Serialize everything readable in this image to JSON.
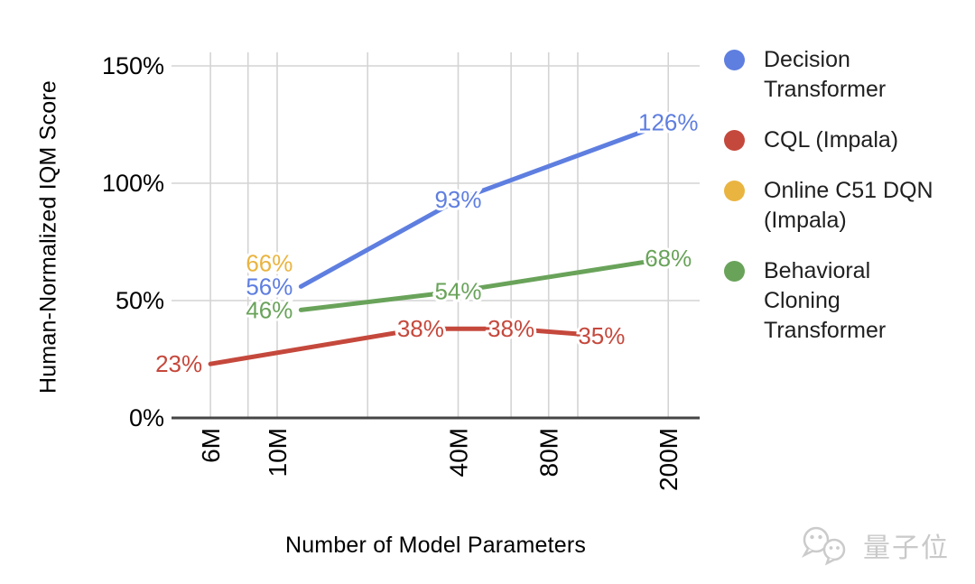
{
  "chart_data": {
    "type": "line",
    "title": "",
    "xlabel": "Number of Model Parameters",
    "ylabel": "Human-Normalized IQM Score",
    "x_axis": {
      "scale": "log",
      "tick_labels": [
        "6M",
        "10M",
        "40M",
        "80M",
        "200M"
      ],
      "ticks_m": [
        6,
        10,
        40,
        80,
        200
      ],
      "minor_gridlines_m": [
        8,
        20,
        60,
        100
      ]
    },
    "y_axis": {
      "tick_labels": [
        "0%",
        "50%",
        "100%",
        "150%"
      ],
      "ticks_pct": [
        0,
        50,
        100,
        150
      ],
      "ylim": [
        0,
        155
      ]
    },
    "grid": true,
    "legend_position": "right",
    "series": [
      {
        "name": "Decision Transformer",
        "color": "#5e7ee0",
        "points": [
          {
            "x_m": 12,
            "y_pct": 56,
            "label": "56%",
            "label_side": "left"
          },
          {
            "x_m": 40,
            "y_pct": 93,
            "label": "93%",
            "label_side": "center"
          },
          {
            "x_m": 200,
            "y_pct": 126,
            "label": "126%",
            "label_side": "center"
          }
        ]
      },
      {
        "name": "CQL (Impala)",
        "color": "#c5483c",
        "points": [
          {
            "x_m": 6,
            "y_pct": 23,
            "label": "23%",
            "label_side": "left"
          },
          {
            "x_m": 30,
            "y_pct": 38,
            "label": "38%",
            "label_side": "center"
          },
          {
            "x_m": 60,
            "y_pct": 38,
            "label": "38%",
            "label_side": "center"
          },
          {
            "x_m": 120,
            "y_pct": 35,
            "label": "35%",
            "label_side": "center"
          }
        ]
      },
      {
        "name": "Online C51 DQN (Impala)",
        "color": "#e9b440",
        "draw_line": false,
        "points": [
          {
            "x_m": 12,
            "y_pct": 66,
            "label": "66%",
            "label_side": "left"
          }
        ]
      },
      {
        "name": "Behavioral Cloning Transformer",
        "color": "#69a35a",
        "points": [
          {
            "x_m": 12,
            "y_pct": 46,
            "label": "46%",
            "label_side": "left"
          },
          {
            "x_m": 40,
            "y_pct": 54,
            "label": "54%",
            "label_side": "center"
          },
          {
            "x_m": 200,
            "y_pct": 68,
            "label": "68%",
            "label_side": "center"
          }
        ]
      }
    ],
    "legend": [
      {
        "color": "#5e7ee0",
        "lines": [
          "Decision",
          "Transformer"
        ]
      },
      {
        "color": "#c5483c",
        "lines": [
          "CQL (Impala)"
        ]
      },
      {
        "color": "#e9b440",
        "lines": [
          "Online C51 DQN",
          "(Impala)"
        ]
      },
      {
        "color": "#69a35a",
        "lines": [
          "Behavioral",
          "Cloning",
          "Transformer"
        ]
      }
    ]
  },
  "watermark": {
    "text": "量子位",
    "icon": "wechat-chat-bubbles-icon",
    "color": "#c9c9c9"
  },
  "colors": {
    "background": "#ffffff",
    "gridline": "#d4d4d4",
    "axis": "#454545",
    "tick_text": "#000000",
    "legend_text": "#1f1f1f"
  }
}
